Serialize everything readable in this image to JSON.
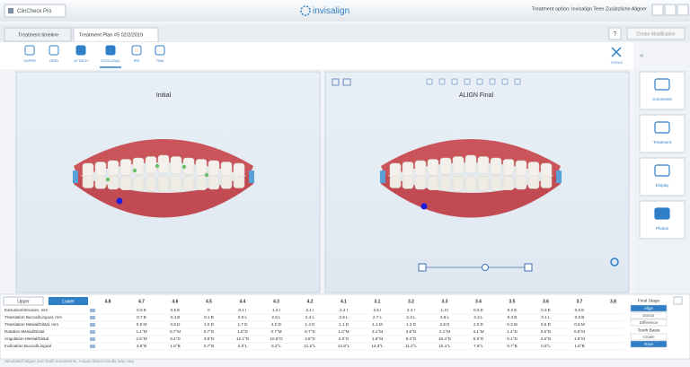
{
  "header": {
    "app_button": "ClinCheck Pro",
    "logo": "invisalign",
    "treatment_option": "Treatment option: Invisalign Teen Zusätzliche Aligner"
  },
  "tabs": {
    "timeline": "Treatment timeline",
    "plan": "Treatment Plan #5 02/2/2019",
    "create": "Create Modification",
    "help": "?"
  },
  "toolbar": {
    "tools": [
      "SUPER",
      "GRID",
      "ATTACH",
      "OCCLUSAL",
      "IPR",
      "TMA"
    ],
    "right_tool": "TOOLS"
  },
  "viewports": {
    "left": "Initial",
    "right": "ALIGN Final"
  },
  "side_panel": {
    "buttons": [
      "Comments",
      "Treatment",
      "Display",
      "Photos"
    ]
  },
  "table": {
    "upper": "Upper",
    "lower": "Lower",
    "columns": [
      "4.8",
      "4.7",
      "4.6",
      "4.5",
      "4.4",
      "4.3",
      "4.2",
      "4.1",
      "3.1",
      "3.2",
      "3.3",
      "3.4",
      "3.5",
      "3.6",
      "3.7",
      "3.8"
    ],
    "rows": [
      {
        "label": "Extrusion/Intrusion, mm",
        "cells": [
          null,
          "0.5 E",
          "0.5 E",
          "0",
          "0.1 I",
          "1.3 I",
          "2.1 I",
          "2.4 I",
          "2.5 I",
          "2.4 I",
          "1.3 I",
          "0.6 E",
          "0.2 E",
          "0.3 E",
          "0.5 E",
          null
        ]
      },
      {
        "label": "Translation Buccal/Lingual, mm",
        "cells": [
          null,
          "0.7 B",
          "0.4 B",
          "0.1 B",
          "0.8 L",
          "2.8 L",
          "2.4 L",
          "2.9 L",
          "2.7 L",
          "2.3 L",
          "4.8 L",
          "2.3 L",
          "0.3 B",
          "0.1 L",
          "0.8 B",
          null
        ]
      },
      {
        "label": "Translation Mesial/Distal, mm",
        "cells": [
          null,
          "0.9 M",
          "0.8 D",
          "1.0 D",
          "1.7 D",
          "4.0 D",
          "1.4 D",
          "1.1 D",
          "1.1 M",
          "1.3 D",
          "2.8 D",
          "2.0 D",
          "0.3 M",
          "0.6 D",
          "0.8 M",
          null
        ]
      },
      {
        "label": "Rotation Mesial/Distal",
        "cells": [
          null,
          "1.1°M",
          "0.7°M",
          "0.7°D",
          "1.8°D",
          "0.7°M",
          "6.7°D",
          "1.0°M",
          "2.1°M",
          "4.9°D",
          "2.1°M",
          "4.1°M",
          "1.4°D",
          "0.5°D",
          "0.8°M",
          null
        ]
      },
      {
        "label": "Angulation Mesial/Distal",
        "cells": [
          null,
          "2.5°M",
          "3.4°D",
          "3.9°D",
          "12.1°D",
          "10.8°D",
          "3.8°D",
          "2.8°D",
          "1.8°M",
          "6.3°D",
          "16.4°D",
          "6.9°D",
          "0.1°D",
          "2.6°D",
          "1.8°M",
          null
        ]
      },
      {
        "label": "Inclination Buccal/Lingual",
        "cells": [
          null,
          "3.9°B",
          "1.8°B",
          "0.7°B",
          "2.8°L",
          "8.2°L",
          "11.2°L",
          "14.8°L",
          "14.3°L",
          "11.2°L",
          "15.1°L",
          "7.6°L",
          "0.7°B",
          "0.6°L",
          "1.8°B",
          null
        ]
      }
    ]
  },
  "stage_panel": {
    "final_stage": "Final Stage",
    "options": [
      "Align",
      "Doctor",
      "Difference"
    ],
    "tooth_basis": "Tooth Basis",
    "basis_options": [
      "Crown",
      "Root"
    ]
  },
  "footer": "Simulated fatigue and Tooth movements. Actual clinical results may vary."
}
